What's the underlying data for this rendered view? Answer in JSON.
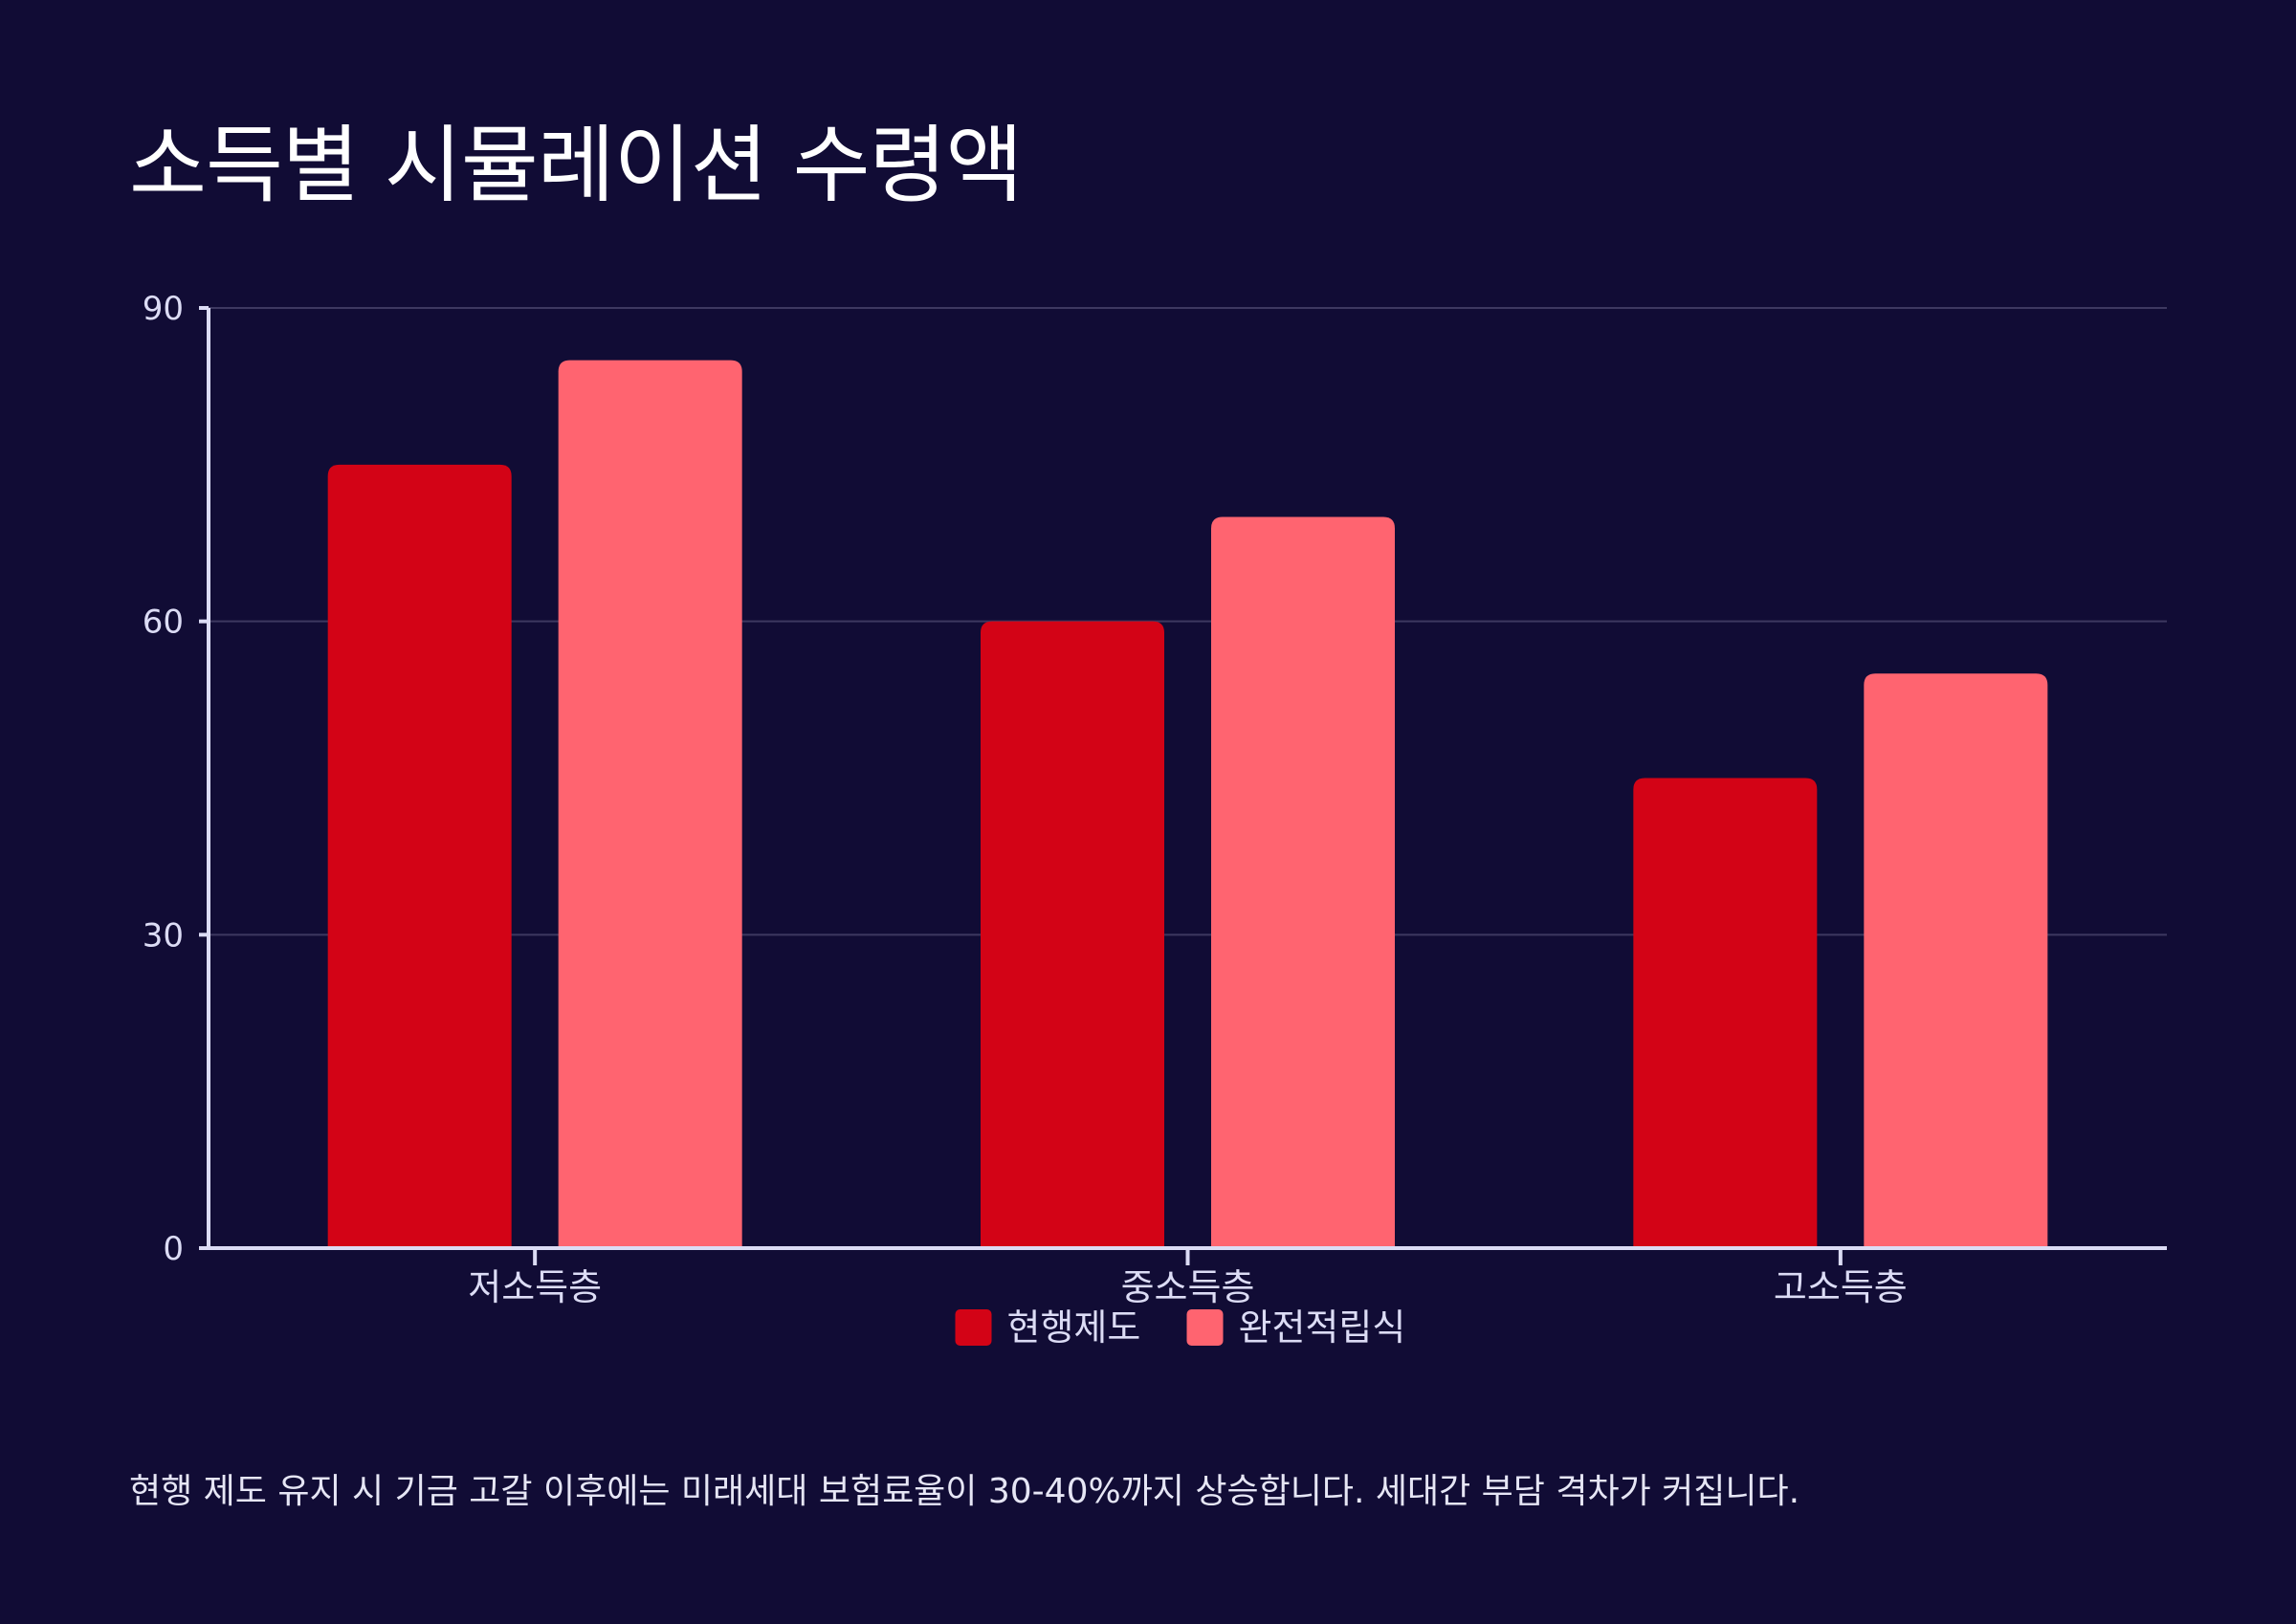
{
  "page": {
    "title": "소득별 시뮬레이션 수령액",
    "note": "현행 제도 유지 시 기금 고갈 이후에는 미래세대 보험료율이 30-40%까지 상승합니다. 세대간 부담 격차가 커집니다."
  },
  "colors": {
    "background": "#110c35",
    "axis": "#dcdcf5",
    "grid": "#3d3860",
    "text": "#ffffff"
  },
  "chart_data": {
    "type": "bar",
    "title": "소득별 시뮬레이션 수령액",
    "xlabel": "",
    "ylabel": "",
    "categories": [
      "저소득층",
      "중소득층",
      "고소득층"
    ],
    "series": [
      {
        "name": "현행제도",
        "values": [
          75,
          60,
          45
        ],
        "color": "#d30316"
      },
      {
        "name": "완전적립식",
        "values": [
          85,
          70,
          55
        ],
        "color": "#ff6470"
      }
    ],
    "ylim": [
      0,
      90
    ],
    "yticks": [
      0,
      30,
      60,
      90
    ],
    "grid": true,
    "legend": "bottom-center"
  }
}
